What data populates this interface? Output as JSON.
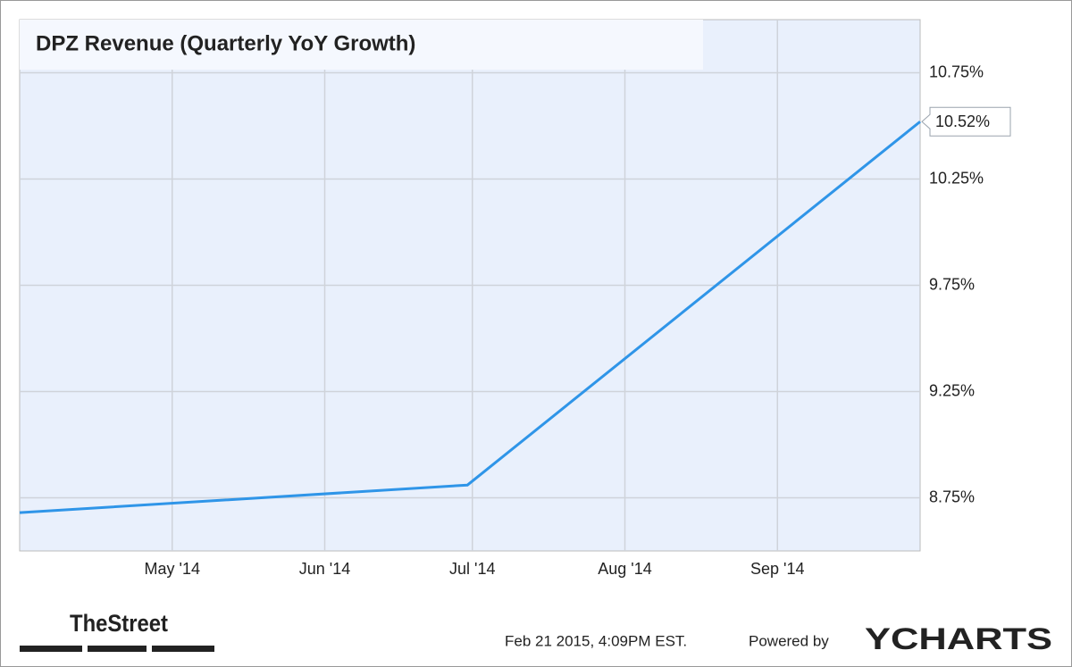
{
  "chart_data": {
    "type": "line",
    "title": "DPZ Revenue (Quarterly YoY Growth)",
    "x": [
      "2014-03",
      "2014-06",
      "2014-09"
    ],
    "series": [
      {
        "name": "DPZ Revenue (Quarterly YoY Growth)",
        "color": "#2f95e8",
        "values": [
          8.68,
          8.81,
          10.52
        ],
        "value_labels": [
          null,
          null,
          "10.52%"
        ]
      }
    ],
    "xlim": [
      "2014-03",
      "2014-09"
    ],
    "xticks": [
      {
        "value": "2014-05",
        "label": "May '14"
      },
      {
        "value": "2014-06",
        "label": "Jun '14"
      },
      {
        "value": "2014-07",
        "label": "Jul '14"
      },
      {
        "value": "2014-08",
        "label": "Aug '14"
      },
      {
        "value": "2014-09",
        "label": "Sep '14"
      }
    ],
    "ylim": [
      8.5,
      11.0
    ],
    "yticks": [
      {
        "value": 8.75,
        "label": "8.75%"
      },
      {
        "value": 9.25,
        "label": "9.25%"
      },
      {
        "value": 9.75,
        "label": "9.75%"
      },
      {
        "value": 10.25,
        "label": "10.25%"
      },
      {
        "value": 10.75,
        "label": "10.75%"
      }
    ],
    "grid": true
  },
  "source_logo": "TheStreet",
  "footer": {
    "timestamp": "Feb 21 2015, 4:09PM EST.",
    "powered_by": "Powered by",
    "brand": "YCHARTS"
  }
}
